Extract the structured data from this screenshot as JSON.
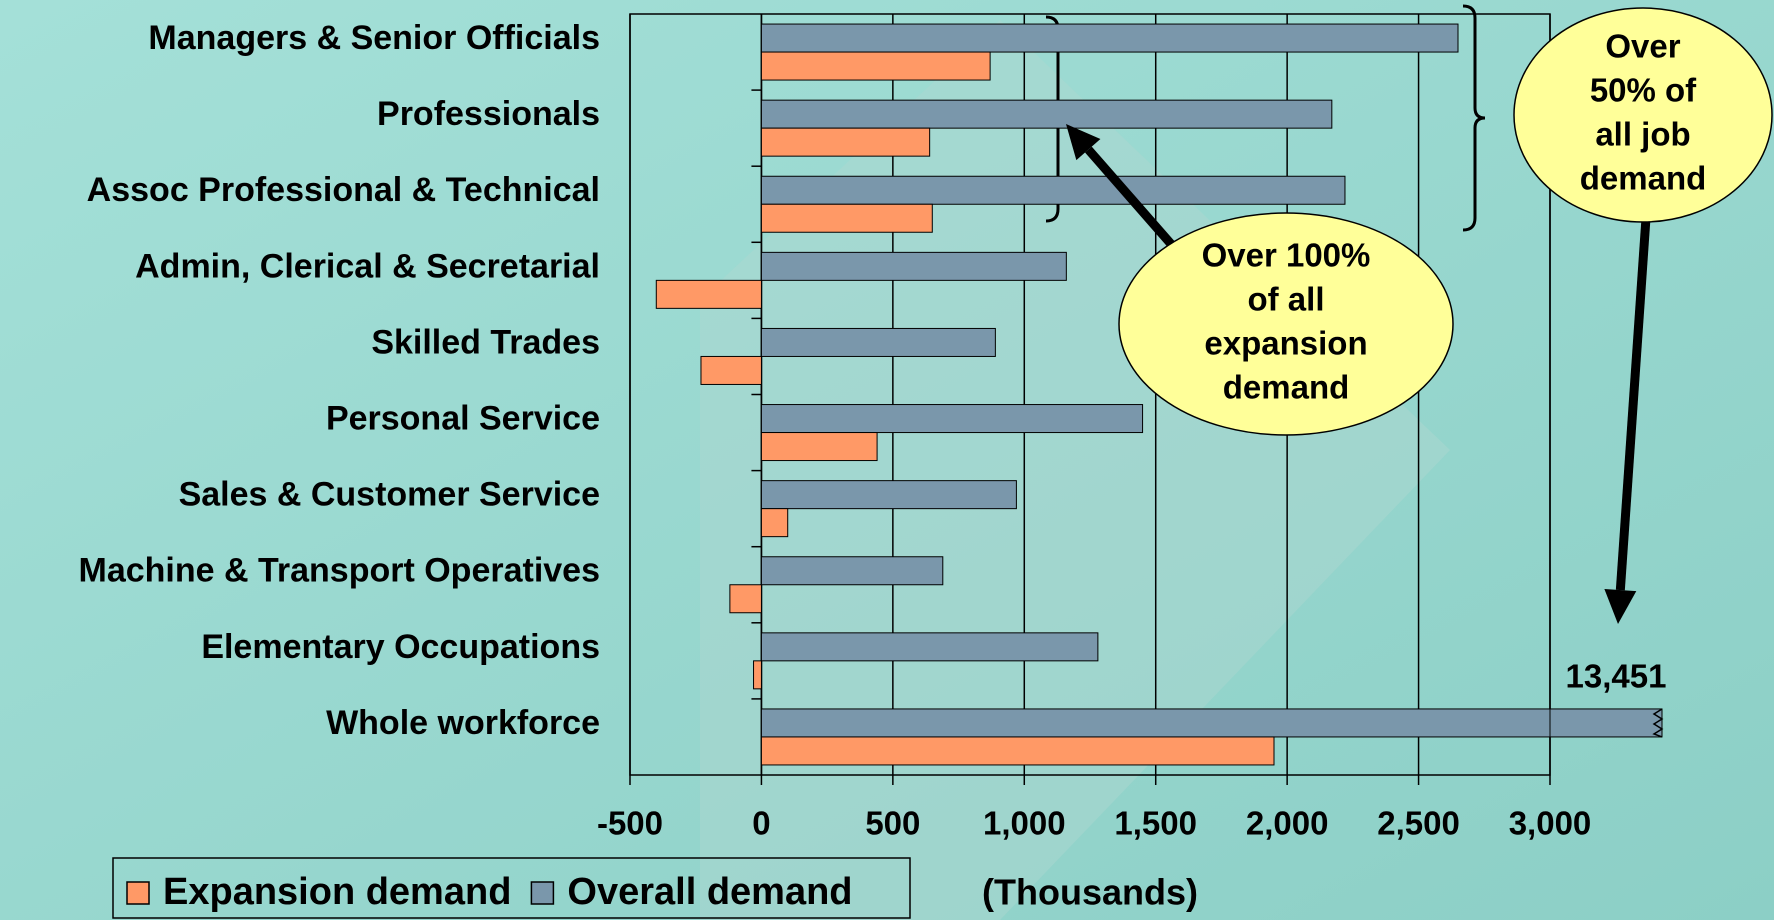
{
  "chart_data": {
    "type": "bar",
    "orientation": "horizontal",
    "categories": [
      "Managers & Senior Officials",
      "Professionals",
      "Assoc Professional & Technical",
      "Admin, Clerical & Secretarial",
      "Skilled Trades",
      "Personal Service",
      "Sales & Customer Service",
      "Machine & Transport Operatives",
      "Elementary Occupations",
      "Whole workforce"
    ],
    "series": [
      {
        "name": "Expansion demand",
        "color": "#ff9966",
        "values": [
          870,
          640,
          650,
          -400,
          -230,
          440,
          100,
          -120,
          -30,
          1950
        ]
      },
      {
        "name": "Overall demand",
        "color": "#7a97ab",
        "values": [
          2650,
          2170,
          2220,
          1160,
          890,
          1450,
          970,
          690,
          1280,
          13451
        ],
        "value_labels": [
          null,
          null,
          null,
          null,
          null,
          null,
          null,
          null,
          null,
          "13,451"
        ]
      }
    ],
    "xlim": [
      -500,
      3000
    ],
    "xticks": [
      -500,
      0,
      500,
      {
        "value": 1000,
        "label": "1,000"
      },
      {
        "value": 1500,
        "label": "1,500"
      },
      {
        "value": 2000,
        "label": "2,000"
      },
      {
        "value": 2500,
        "label": "2,500"
      },
      {
        "value": 3000,
        "label": "3,000"
      }
    ],
    "xlabel": "(Thousands)",
    "grid": true,
    "legend": "bottom-left",
    "annotations": [
      {
        "lines": [
          "Over 100%",
          "of all",
          "expansion",
          "demand"
        ]
      },
      {
        "lines": [
          "Over",
          "50% of",
          "all job",
          "demand"
        ]
      }
    ]
  }
}
